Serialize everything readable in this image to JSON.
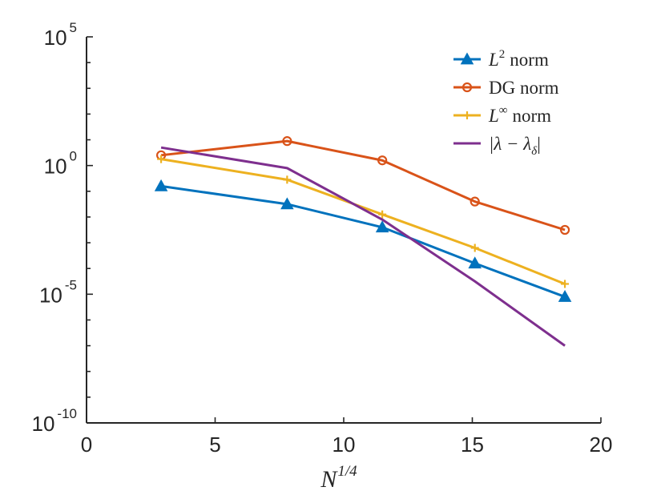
{
  "chart_data": {
    "type": "line",
    "title": "",
    "xlabel": "N^{1/4}",
    "xlabel_base": "N",
    "xlabel_exp": "1/4",
    "ylabel": "",
    "yscale": "log",
    "xlim": [
      0,
      20
    ],
    "ylim_log10": [
      -10,
      5
    ],
    "x_ticks": [
      0,
      5,
      10,
      15,
      20
    ],
    "x_tick_labels": [
      "0",
      "5",
      "10",
      "15",
      "20"
    ],
    "y_major_ticks_log10": [
      -10,
      -5,
      0,
      5
    ],
    "y_tick_labels": [
      {
        "base": "10",
        "exp": "-10"
      },
      {
        "base": "10",
        "exp": "-5"
      },
      {
        "base": "10",
        "exp": "0"
      },
      {
        "base": "10",
        "exp": "5"
      }
    ],
    "legend_position": "top-right",
    "series": [
      {
        "name": "L^2 norm",
        "legend": {
          "sym": "L",
          "sup": "2",
          "rest": "norm"
        },
        "color": "#0072BD",
        "marker": "triangle",
        "x": [
          2.9,
          7.8,
          11.5,
          15.1,
          18.6
        ],
        "log10_y": [
          -0.8,
          -1.5,
          -2.4,
          -3.8,
          -5.1
        ]
      },
      {
        "name": "DG norm",
        "legend": {
          "sym": "",
          "sup": "",
          "rest": "DG norm"
        },
        "color": "#D95319",
        "marker": "circle",
        "x": [
          2.9,
          7.8,
          11.5,
          15.1,
          18.6
        ],
        "log10_y": [
          0.4,
          0.95,
          0.2,
          -1.4,
          -2.5
        ]
      },
      {
        "name": "L^inf norm",
        "legend": {
          "sym": "L",
          "sup": "∞",
          "rest": "norm"
        },
        "color": "#EDB120",
        "marker": "plus",
        "x": [
          2.9,
          7.8,
          11.5,
          15.1,
          18.6
        ],
        "log10_y": [
          0.25,
          -0.55,
          -1.9,
          -3.2,
          -4.6
        ]
      },
      {
        "name": "|lambda - lambda_delta|",
        "legend": {
          "sym": "|λ − λ",
          "sub": "δ",
          "rest": "|"
        },
        "color": "#7E2F8E",
        "marker": "none",
        "x": [
          2.9,
          7.8,
          11.5,
          15.1,
          18.6
        ],
        "log10_y": [
          0.7,
          -0.1,
          -2.1,
          -4.5,
          -7.0
        ]
      }
    ]
  }
}
